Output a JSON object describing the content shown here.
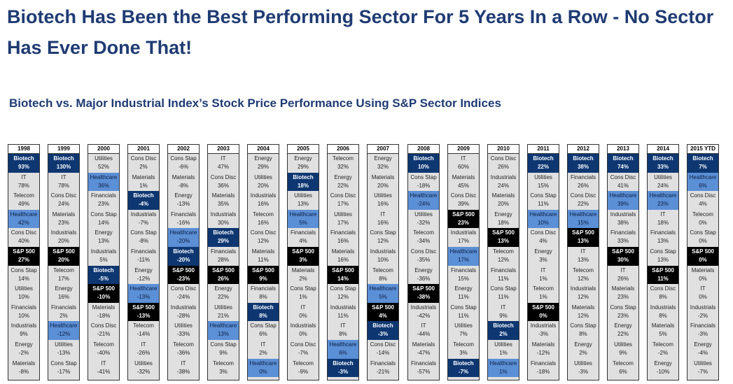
{
  "header": {
    "title": "Biotech Has Been the Best Performing Sector For 5 Years In a Row - No Sector Has Ever Done That!",
    "subtitle": "Biotech vs. Major Industrial Index’s Stock  Price Performance Using S&P Sector Indices"
  },
  "colors": {
    "title": "#1f3b73",
    "biotech": "#0e3772",
    "healthcare": "#5b8fd6",
    "sp500": "#000000",
    "default": "#e0e0e0"
  },
  "chart_data": {
    "type": "table",
    "columns": [
      {
        "year": "1998",
        "cells": [
          [
            "Biotech",
            "93%"
          ],
          [
            "IT",
            "78%"
          ],
          [
            "Telecom",
            "49%"
          ],
          [
            "Healthcare",
            "42%"
          ],
          [
            "Cons Disc",
            "40%"
          ],
          [
            "S&P 500",
            "27%"
          ],
          [
            "Cons Stap",
            "14%"
          ],
          [
            "Utilities",
            "10%"
          ],
          [
            "Financials",
            "10%"
          ],
          [
            "Industrials",
            "9%"
          ],
          [
            "Energy",
            "-2%"
          ],
          [
            "Materials",
            "-8%"
          ]
        ]
      },
      {
        "year": "1999",
        "cells": [
          [
            "Biotech",
            "130%"
          ],
          [
            "IT",
            "78%"
          ],
          [
            "Cons Disc",
            "24%"
          ],
          [
            "Materials",
            "23%"
          ],
          [
            "Industrials",
            "20%"
          ],
          [
            "S&P 500",
            "20%"
          ],
          [
            "Telecom",
            "17%"
          ],
          [
            "Energy",
            "16%"
          ],
          [
            "Financials",
            "2%"
          ],
          [
            "Healthcare",
            "-12%"
          ],
          [
            "Utilities",
            "-13%"
          ],
          [
            "Cons Stap",
            "-17%"
          ]
        ]
      },
      {
        "year": "2000",
        "cells": [
          [
            "Utilities",
            "52%"
          ],
          [
            "Healthcare",
            "36%"
          ],
          [
            "Financials",
            "23%"
          ],
          [
            "Cons Stap",
            "14%"
          ],
          [
            "Energy",
            "13%"
          ],
          [
            "Industrials",
            "5%"
          ],
          [
            "Biotech",
            "-5%"
          ],
          [
            "S&P 500",
            "-10%"
          ],
          [
            "Materials",
            "-18%"
          ],
          [
            "Cons Disc",
            "-21%"
          ],
          [
            "Telecom",
            "-40%"
          ],
          [
            "IT",
            "-41%"
          ]
        ]
      },
      {
        "year": "2001",
        "cells": [
          [
            "Cons Disc",
            "2%"
          ],
          [
            "Materials",
            "1%"
          ],
          [
            "Biotech",
            "-4%"
          ],
          [
            "Industrials",
            "-7%"
          ],
          [
            "Cons Stap",
            "-8%"
          ],
          [
            "Financials",
            "-11%"
          ],
          [
            "Energy",
            "-12%"
          ],
          [
            "Healthcare",
            "-13%"
          ],
          [
            "S&P 500",
            "-13%"
          ],
          [
            "Telecom",
            "-14%"
          ],
          [
            "IT",
            "-26%"
          ],
          [
            "Utilities",
            "-32%"
          ]
        ]
      },
      {
        "year": "2002",
        "cells": [
          [
            "Cons Stap",
            "-6%"
          ],
          [
            "Materials",
            "-8%"
          ],
          [
            "Energy",
            "-13%"
          ],
          [
            "Financials",
            "-16%"
          ],
          [
            "Healthcare",
            "-20%"
          ],
          [
            "Biotech",
            "-20%"
          ],
          [
            "S&P 500",
            "-23%"
          ],
          [
            "Cons Disc",
            "-24%"
          ],
          [
            "Industrials",
            "-28%"
          ],
          [
            "Utilities",
            "-33%"
          ],
          [
            "Telecom",
            "-36%"
          ],
          [
            "IT",
            "-38%"
          ]
        ]
      },
      {
        "year": "2003",
        "cells": [
          [
            "IT",
            "47%"
          ],
          [
            "Cons Disc",
            "36%"
          ],
          [
            "Materials",
            "35%"
          ],
          [
            "Industrials",
            "30%"
          ],
          [
            "Biotech",
            "29%"
          ],
          [
            "Financials",
            "28%"
          ],
          [
            "S&P 500",
            "26%"
          ],
          [
            "Energy",
            "22%"
          ],
          [
            "Utilities",
            "21%"
          ],
          [
            "Healthcare",
            "13%"
          ],
          [
            "Cons Stap",
            "9%"
          ],
          [
            "Telecom",
            "3%"
          ]
        ]
      },
      {
        "year": "2004",
        "cells": [
          [
            "Energy",
            "29%"
          ],
          [
            "Utilities",
            "20%"
          ],
          [
            "Industrials",
            "16%"
          ],
          [
            "Telecom",
            "16%"
          ],
          [
            "Cons Disc",
            "12%"
          ],
          [
            "Materials",
            "11%"
          ],
          [
            "S&P 500",
            "9%"
          ],
          [
            "Financials",
            "8%"
          ],
          [
            "Biotech",
            "8%"
          ],
          [
            "Cons Stap",
            "6%"
          ],
          [
            "IT",
            "2%"
          ],
          [
            "Healthcare",
            "0%"
          ]
        ]
      },
      {
        "year": "2005",
        "cells": [
          [
            "Energy",
            "29%"
          ],
          [
            "Biotech",
            "18%"
          ],
          [
            "Utilities",
            "13%"
          ],
          [
            "Healthcare",
            "5%"
          ],
          [
            "Financials",
            "4%"
          ],
          [
            "S&P 500",
            "3%"
          ],
          [
            "Materials",
            "2%"
          ],
          [
            "Cons Stap",
            "1%"
          ],
          [
            "IT",
            "0%"
          ],
          [
            "Industrials",
            "0%"
          ],
          [
            "Cons Disc",
            "-7%"
          ],
          [
            "Telecom",
            "-9%"
          ]
        ]
      },
      {
        "year": "2006",
        "cells": [
          [
            "Telecom",
            "32%"
          ],
          [
            "Energy",
            "22%"
          ],
          [
            "Cons Disc",
            "17%"
          ],
          [
            "Utilities",
            "17%"
          ],
          [
            "Financials",
            "16%"
          ],
          [
            "Materials",
            "16%"
          ],
          [
            "S&P 500",
            "14%"
          ],
          [
            "Cons Stap",
            "12%"
          ],
          [
            "Industrials",
            "11%"
          ],
          [
            "IT",
            "8%"
          ],
          [
            "Healthcare",
            "6%"
          ],
          [
            "Biotech",
            "-3%"
          ]
        ]
      },
      {
        "year": "2007",
        "cells": [
          [
            "Energy",
            "32%"
          ],
          [
            "Materials",
            "20%"
          ],
          [
            "Utilities",
            "16%"
          ],
          [
            "IT",
            "16%"
          ],
          [
            "Cons Stap",
            "12%"
          ],
          [
            "Industrials",
            "10%"
          ],
          [
            "Telecom",
            "8%"
          ],
          [
            "Healthcare",
            "5%"
          ],
          [
            "S&P 500",
            "4%"
          ],
          [
            "Biotech",
            "-3%"
          ],
          [
            "Cons Disc",
            "-14%"
          ],
          [
            "Financials",
            "-21%"
          ]
        ]
      },
      {
        "year": "2008",
        "cells": [
          [
            "Biotech",
            "10%"
          ],
          [
            "Cons Stap",
            "-18%"
          ],
          [
            "Healthcare",
            "-24%"
          ],
          [
            "Utilities",
            "-32%"
          ],
          [
            "Telecom",
            "-34%"
          ],
          [
            "Cons Disc",
            "-35%"
          ],
          [
            "Energy",
            "-36%"
          ],
          [
            "S&P 500",
            "-38%"
          ],
          [
            "Industrials",
            "-42%"
          ],
          [
            "IT",
            "-44%"
          ],
          [
            "Materials",
            "-47%"
          ],
          [
            "Financials",
            "-57%"
          ]
        ]
      },
      {
        "year": "2009",
        "cells": [
          [
            "IT",
            "60%"
          ],
          [
            "Materials",
            "45%"
          ],
          [
            "Cons Disc",
            "39%"
          ],
          [
            "S&P 500",
            "23%"
          ],
          [
            "Industrials",
            "17%"
          ],
          [
            "Healthcare",
            "17%"
          ],
          [
            "Financials",
            "15%"
          ],
          [
            "Energy",
            "11%"
          ],
          [
            "Cons Stap",
            "11%"
          ],
          [
            "Utilities",
            "7%"
          ],
          [
            "Telecom",
            "3%"
          ],
          [
            "Biotech",
            "-7%"
          ]
        ]
      },
      {
        "year": "2010",
        "cells": [
          [
            "Cons Disc",
            "26%"
          ],
          [
            "Industrials",
            "24%"
          ],
          [
            "Materials",
            "20%"
          ],
          [
            "Energy",
            "18%"
          ],
          [
            "S&P 500",
            "13%"
          ],
          [
            "Telecom",
            "12%"
          ],
          [
            "Financials",
            "11%"
          ],
          [
            "Cons Stap",
            "11%"
          ],
          [
            "IT",
            "9%"
          ],
          [
            "Biotech",
            "2%"
          ],
          [
            "Utilities",
            "1%"
          ],
          [
            "Healthcare",
            "1%"
          ]
        ]
      },
      {
        "year": "2011",
        "cells": [
          [
            "Biotech",
            "22%"
          ],
          [
            "Utilities",
            "15%"
          ],
          [
            "Cons Stap",
            "11%"
          ],
          [
            "Healthcare",
            "10%"
          ],
          [
            "Cons Disc",
            "4%"
          ],
          [
            "Energy",
            "3%"
          ],
          [
            "IT",
            "1%"
          ],
          [
            "Telecom",
            "1%"
          ],
          [
            "S&P 500",
            "0%"
          ],
          [
            "Industrials",
            "-3%"
          ],
          [
            "Materials",
            "-12%"
          ],
          [
            "Financials",
            "-18%"
          ]
        ]
      },
      {
        "year": "2012",
        "cells": [
          [
            "Biotech",
            "38%"
          ],
          [
            "Financials",
            "26%"
          ],
          [
            "Cons Disc",
            "22%"
          ],
          [
            "Healthcare",
            "15%"
          ],
          [
            "S&P 500",
            "13%"
          ],
          [
            "IT",
            "13%"
          ],
          [
            "Telecom",
            "12%"
          ],
          [
            "Industrials",
            "12%"
          ],
          [
            "Materials",
            "12%"
          ],
          [
            "Cons Stap",
            "8%"
          ],
          [
            "Energy",
            "2%"
          ],
          [
            "Utilities",
            "-3%"
          ]
        ]
      },
      {
        "year": "2013",
        "cells": [
          [
            "Biotech",
            "74%"
          ],
          [
            "Cons Disc",
            "41%"
          ],
          [
            "Healthcare",
            "39%"
          ],
          [
            "Industrials",
            "38%"
          ],
          [
            "Financials",
            "33%"
          ],
          [
            "S&P 500",
            "30%"
          ],
          [
            "IT",
            "26%"
          ],
          [
            "Materials",
            "23%"
          ],
          [
            "Cons Stap",
            "23%"
          ],
          [
            "Energy",
            "22%"
          ],
          [
            "Utilities",
            "9%"
          ],
          [
            "Telecom",
            "6%"
          ]
        ]
      },
      {
        "year": "2014",
        "cells": [
          [
            "Biotech",
            "33%"
          ],
          [
            "Utilities",
            "24%"
          ],
          [
            "Healthcare",
            "23%"
          ],
          [
            "IT",
            "18%"
          ],
          [
            "Financials",
            "13%"
          ],
          [
            "Cons Stap",
            "13%"
          ],
          [
            "S&P 500",
            "11%"
          ],
          [
            "Cons Disc",
            "8%"
          ],
          [
            "Industrials",
            "8%"
          ],
          [
            "Materials",
            "5%"
          ],
          [
            "Telecom",
            "-2%"
          ],
          [
            "Energy",
            "-10%"
          ]
        ]
      },
      {
        "year": "2015 YTD",
        "cells": [
          [
            "Biotech",
            "7%"
          ],
          [
            "Healthcare",
            "6%"
          ],
          [
            "Cons Disc",
            "4%"
          ],
          [
            "Telecom",
            "0%"
          ],
          [
            "Cons Stap",
            "0%"
          ],
          [
            "S&P 500",
            "0%"
          ],
          [
            "Materials",
            "0%"
          ],
          [
            "IT",
            "0%"
          ],
          [
            "Industrials",
            "-2%"
          ],
          [
            "Financials",
            "-3%"
          ],
          [
            "Energy",
            "-4%"
          ],
          [
            "Utilities",
            "-7%"
          ]
        ]
      }
    ]
  }
}
